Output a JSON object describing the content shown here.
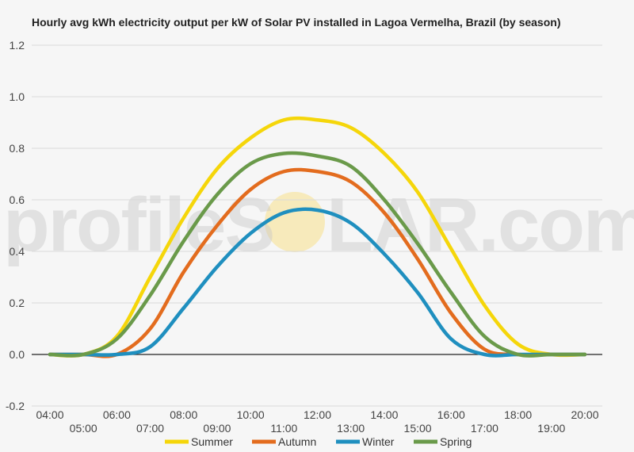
{
  "watermark": {
    "text_left": "profileS",
    "text_right": "LAR.com",
    "sun_color": "#f8e08a"
  },
  "chart_data": {
    "type": "line",
    "title": "Hourly avg kWh electricity output per kW of Solar PV installed in Lagoa Vermelha, Brazil (by season)",
    "xlabel": "",
    "ylabel": "",
    "x": [
      "04:00",
      "05:00",
      "06:00",
      "07:00",
      "08:00",
      "09:00",
      "10:00",
      "11:00",
      "12:00",
      "13:00",
      "14:00",
      "15:00",
      "16:00",
      "17:00",
      "18:00",
      "19:00",
      "20:00"
    ],
    "x_tick_labels_upper": [
      "04:00",
      "06:00",
      "08:00",
      "10:00",
      "12:00",
      "14:00",
      "16:00",
      "18:00",
      "20:00"
    ],
    "x_tick_labels_lower": [
      "05:00",
      "07:00",
      "09:00",
      "11:00",
      "13:00",
      "15:00",
      "17:00",
      "19:00"
    ],
    "ylim": [
      -0.2,
      1.2
    ],
    "y_ticks": [
      -0.2,
      0.0,
      0.2,
      0.4,
      0.6,
      0.8,
      1.0,
      1.2
    ],
    "y_tick_labels": [
      "-0.2",
      "0.0",
      "0.2",
      "0.4",
      "0.6",
      "0.8",
      "1.0",
      "1.2"
    ],
    "grid": true,
    "legend_position": "bottom",
    "series": [
      {
        "name": "Summer",
        "color": "#f5d60a",
        "values": [
          0.0,
          0.0,
          0.07,
          0.3,
          0.53,
          0.72,
          0.84,
          0.91,
          0.91,
          0.88,
          0.78,
          0.63,
          0.41,
          0.19,
          0.04,
          0.0,
          0.0
        ]
      },
      {
        "name": "Autumn",
        "color": "#e36c1e",
        "values": [
          0.0,
          0.0,
          0.0,
          0.1,
          0.32,
          0.5,
          0.64,
          0.71,
          0.71,
          0.67,
          0.55,
          0.37,
          0.16,
          0.02,
          0.0,
          0.0,
          0.0
        ]
      },
      {
        "name": "Winter",
        "color": "#1f8fbf",
        "values": [
          0.0,
          0.0,
          0.0,
          0.03,
          0.18,
          0.34,
          0.47,
          0.55,
          0.56,
          0.51,
          0.39,
          0.24,
          0.06,
          0.0,
          0.0,
          0.0,
          0.0
        ]
      },
      {
        "name": "Spring",
        "color": "#6a9a4a",
        "values": [
          0.0,
          0.0,
          0.06,
          0.23,
          0.44,
          0.62,
          0.74,
          0.78,
          0.77,
          0.73,
          0.6,
          0.43,
          0.24,
          0.07,
          0.0,
          0.0,
          0.0
        ]
      }
    ]
  }
}
